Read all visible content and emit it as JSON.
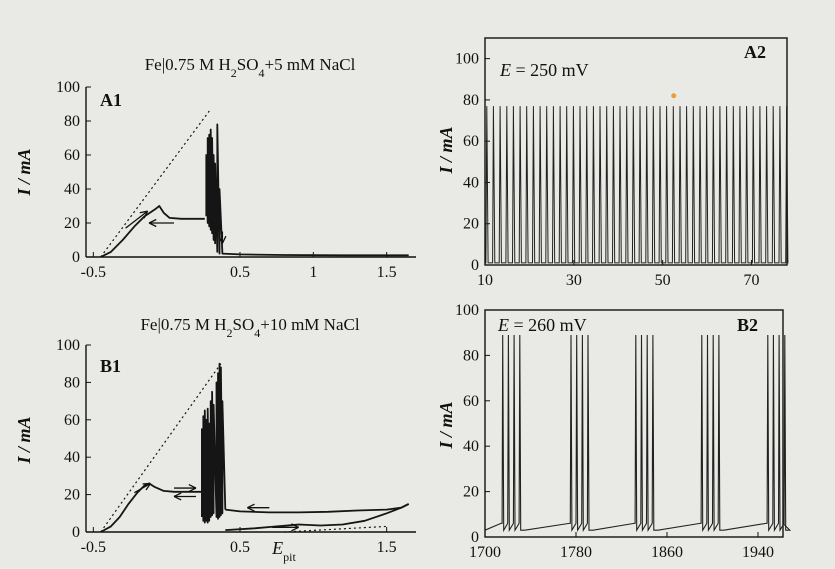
{
  "chart_data": [
    {
      "id": "A1",
      "type": "line",
      "panel_label": "A1",
      "title_parts": [
        "Fe|0.75 M H",
        "2",
        "SO",
        "4",
        "+5 mM NaCl"
      ],
      "ylabel": "I / mA",
      "xlabel": "",
      "xlim": [
        -0.55,
        1.7
      ],
      "ylim": [
        0,
        100
      ],
      "x_ticks": [
        -0.5,
        0.5,
        1,
        1.5
      ],
      "x_tick_labels": [
        "-0.5",
        "0.5",
        "1",
        "1.5"
      ],
      "y_ticks": [
        0,
        20,
        40,
        60,
        80,
        100
      ],
      "y_tick_labels": [
        "0",
        "20",
        "40",
        "60",
        "80",
        "100"
      ],
      "series": [
        {
          "style": "solid",
          "points": [
            [
              -0.45,
              0
            ],
            [
              -0.38,
              3
            ],
            [
              -0.3,
              10
            ],
            [
              -0.22,
              18
            ],
            [
              -0.15,
              24
            ],
            [
              -0.08,
              28
            ],
            [
              -0.05,
              30
            ],
            [
              -0.02,
              26
            ],
            [
              0.02,
              23
            ],
            [
              0.1,
              22.5
            ],
            [
              0.2,
              22.5
            ],
            [
              0.26,
              22.5
            ]
          ]
        },
        {
          "style": "solid",
          "points": [
            [
              0.27,
              24
            ],
            [
              0.27,
              60
            ],
            [
              0.28,
              20
            ],
            [
              0.28,
              70
            ],
            [
              0.29,
              18
            ],
            [
              0.29,
              72
            ],
            [
              0.3,
              16
            ],
            [
              0.3,
              75
            ],
            [
              0.31,
              14
            ],
            [
              0.31,
              70
            ],
            [
              0.32,
              10
            ],
            [
              0.32,
              60
            ],
            [
              0.33,
              8
            ],
            [
              0.33,
              55
            ],
            [
              0.345,
              3
            ],
            [
              0.345,
              78
            ],
            [
              0.36,
              2
            ],
            [
              0.36,
              40
            ],
            [
              0.38,
              2
            ],
            [
              0.5,
              1.5
            ],
            [
              0.8,
              1.2
            ],
            [
              1.2,
              1
            ],
            [
              1.65,
              1
            ]
          ]
        },
        {
          "style": "dotted",
          "points": [
            [
              -0.45,
              0
            ],
            [
              0.3,
              87
            ]
          ]
        }
      ],
      "arrows": [
        {
          "from": [
            -0.28,
            17
          ],
          "to": [
            -0.13,
            27
          ],
          "direction": "up-right"
        },
        {
          "from": [
            0.05,
            20
          ],
          "to": [
            -0.12,
            20
          ],
          "direction": "left"
        },
        {
          "from": [
            0.38,
            15
          ],
          "to": [
            0.38,
            8
          ],
          "direction": "down"
        }
      ],
      "annotations": []
    },
    {
      "id": "B1",
      "type": "line",
      "panel_label": "B1",
      "title_parts": [
        "Fe|0.75 M H",
        "2",
        "SO",
        "4",
        "+10 mM NaCl"
      ],
      "ylabel": "I / mA",
      "xlabel": "",
      "xlim": [
        -0.55,
        1.7
      ],
      "ylim": [
        0,
        100
      ],
      "x_ticks": [
        -0.5,
        0.5,
        1.5
      ],
      "x_tick_labels": [
        "-0.5",
        "0.5",
        "1.5"
      ],
      "y_ticks": [
        0,
        20,
        40,
        60,
        80,
        100
      ],
      "y_tick_labels": [
        "0",
        "20",
        "40",
        "60",
        "80",
        "100"
      ],
      "series": [
        {
          "style": "solid",
          "points": [
            [
              -0.45,
              0
            ],
            [
              -0.38,
              3
            ],
            [
              -0.32,
              8
            ],
            [
              -0.26,
              15
            ],
            [
              -0.2,
              21
            ],
            [
              -0.15,
              25
            ],
            [
              -0.12,
              26
            ],
            [
              -0.08,
              24
            ],
            [
              -0.02,
              22
            ],
            [
              0.05,
              21.5
            ],
            [
              0.15,
              21.5
            ],
            [
              0.24,
              21.5
            ]
          ]
        },
        {
          "style": "solid",
          "points": [
            [
              0.24,
              8
            ],
            [
              0.24,
              55
            ],
            [
              0.25,
              6
            ],
            [
              0.25,
              62
            ],
            [
              0.26,
              5
            ],
            [
              0.26,
              65
            ],
            [
              0.27,
              6
            ],
            [
              0.27,
              60
            ],
            [
              0.28,
              5
            ],
            [
              0.28,
              66
            ],
            [
              0.29,
              6
            ],
            [
              0.29,
              58
            ],
            [
              0.3,
              8
            ],
            [
              0.3,
              70
            ],
            [
              0.31,
              9
            ],
            [
              0.31,
              75
            ],
            [
              0.32,
              10
            ],
            [
              0.32,
              68
            ],
            [
              0.34,
              8
            ],
            [
              0.34,
              80
            ],
            [
              0.35,
              7
            ],
            [
              0.35,
              85
            ],
            [
              0.36,
              8
            ],
            [
              0.36,
              90
            ],
            [
              0.37,
              9
            ],
            [
              0.37,
              88
            ],
            [
              0.38,
              10
            ],
            [
              0.38,
              70
            ],
            [
              0.4,
              12
            ]
          ]
        },
        {
          "style": "solid",
          "points": [
            [
              0.4,
              12
            ],
            [
              0.5,
              11
            ],
            [
              0.7,
              10.5
            ],
            [
              0.9,
              10.5
            ],
            [
              1.1,
              10.8
            ],
            [
              1.3,
              11.5
            ],
            [
              1.5,
              12
            ],
            [
              1.6,
              13
            ],
            [
              1.65,
              15
            ]
          ]
        },
        {
          "style": "solid",
          "points": [
            [
              0.4,
              1
            ],
            [
              0.6,
              2
            ],
            [
              0.75,
              3
            ],
            [
              0.9,
              4
            ],
            [
              1.05,
              3.5
            ],
            [
              1.2,
              4
            ],
            [
              1.35,
              6
            ],
            [
              1.5,
              10
            ],
            [
              1.6,
              13
            ],
            [
              1.65,
              15
            ]
          ]
        },
        {
          "style": "dotted",
          "points": [
            [
              -0.45,
              0
            ],
            [
              0.37,
              90
            ]
          ]
        },
        {
          "style": "dotted",
          "points": [
            [
              0.8,
              0
            ],
            [
              1.5,
              3
            ]
          ]
        }
      ],
      "arrows": [
        {
          "from": [
            -0.22,
            21
          ],
          "to": [
            -0.11,
            26
          ],
          "direction": "up-right"
        },
        {
          "from": [
            0.05,
            23.5
          ],
          "to": [
            0.2,
            23.5
          ],
          "direction": "right"
        },
        {
          "from": [
            0.2,
            19
          ],
          "to": [
            0.05,
            19
          ],
          "direction": "left"
        },
        {
          "from": [
            0.7,
            13
          ],
          "to": [
            0.55,
            13
          ],
          "direction": "left"
        },
        {
          "from": [
            0.72,
            2.5
          ],
          "to": [
            0.9,
            2.5
          ],
          "direction": "right"
        }
      ],
      "annotations": [
        {
          "label": "E",
          "subscript": "pit",
          "x": 0.8,
          "y": -9
        }
      ]
    },
    {
      "id": "A2",
      "type": "line",
      "panel_label": "A2",
      "annotation_prefix": "E",
      "annotation_rest": " = 250 mV",
      "ylabel": "I / mA",
      "xlabel": "",
      "xlim": [
        10,
        78
      ],
      "ylim": [
        0,
        110
      ],
      "x_ticks": [
        10,
        30,
        50,
        70
      ],
      "x_tick_labels": [
        "10",
        "30",
        "50",
        "70"
      ],
      "y_ticks": [
        0,
        20,
        40,
        60,
        80,
        100
      ],
      "y_tick_labels": [
        "0",
        "20",
        "40",
        "60",
        "80",
        "100"
      ],
      "oscillation": {
        "start": 10,
        "end": 78,
        "period": 1.5,
        "peak": 77,
        "base": 1
      }
    },
    {
      "id": "B2",
      "type": "line",
      "panel_label": "B2",
      "annotation_prefix": "E",
      "annotation_rest": " = 260 mV",
      "ylabel": "I / mA",
      "xlabel": "",
      "xlim": [
        1700,
        1962
      ],
      "ylim": [
        0,
        100
      ],
      "x_ticks": [
        1700,
        1780,
        1860,
        1940
      ],
      "x_tick_labels": [
        "1700",
        "1780",
        "1860",
        "1940"
      ],
      "y_ticks": [
        0,
        20,
        40,
        60,
        80,
        100
      ],
      "y_tick_labels": [
        "0",
        "20",
        "40",
        "60",
        "80",
        "100"
      ],
      "bursts": [
        1715,
        1775,
        1832,
        1890,
        1948
      ],
      "spikes_per_burst": 4,
      "spike_spacing": 5,
      "spike_peak": 89,
      "baseline_low": 3,
      "baseline_high": 6
    }
  ]
}
